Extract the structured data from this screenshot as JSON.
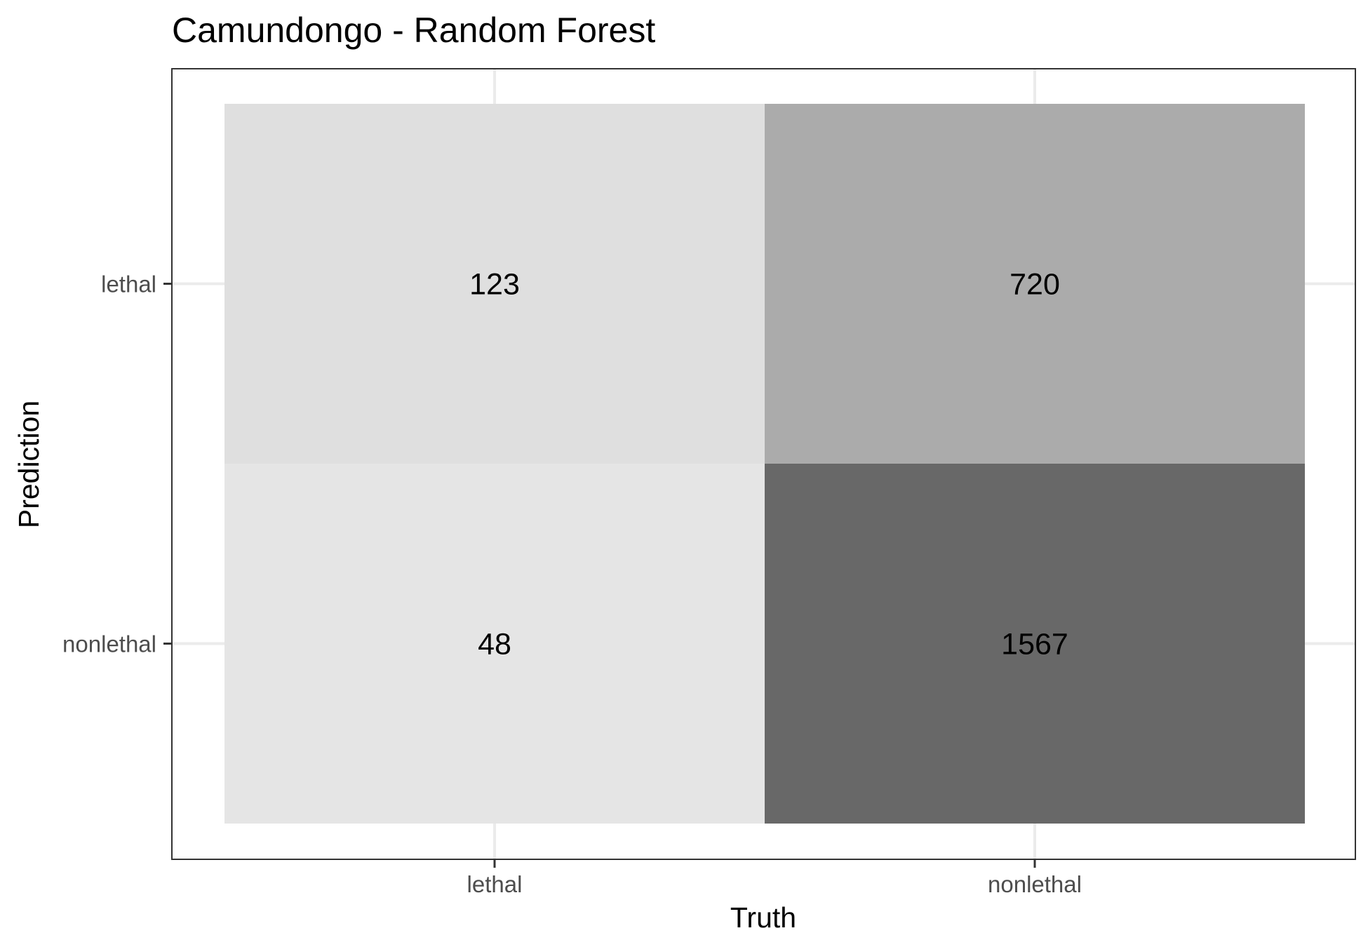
{
  "chart_data": {
    "type": "heatmap",
    "title": "Camundongo - Random Forest",
    "xlabel": "Truth",
    "ylabel": "Prediction",
    "x_categories": [
      "lethal",
      "nonlethal"
    ],
    "y_categories": [
      "lethal",
      "nonlethal"
    ],
    "cells": [
      {
        "truth": "lethal",
        "prediction": "lethal",
        "value": 123,
        "label": "123",
        "color": "#dfdfdf"
      },
      {
        "truth": "nonlethal",
        "prediction": "lethal",
        "value": 720,
        "label": "720",
        "color": "#ababab"
      },
      {
        "truth": "lethal",
        "prediction": "nonlethal",
        "value": 48,
        "label": "48",
        "color": "#e5e5e5"
      },
      {
        "truth": "nonlethal",
        "prediction": "nonlethal",
        "value": 1567,
        "label": "1567",
        "color": "#686868"
      }
    ],
    "grid": true,
    "legend": "none"
  }
}
